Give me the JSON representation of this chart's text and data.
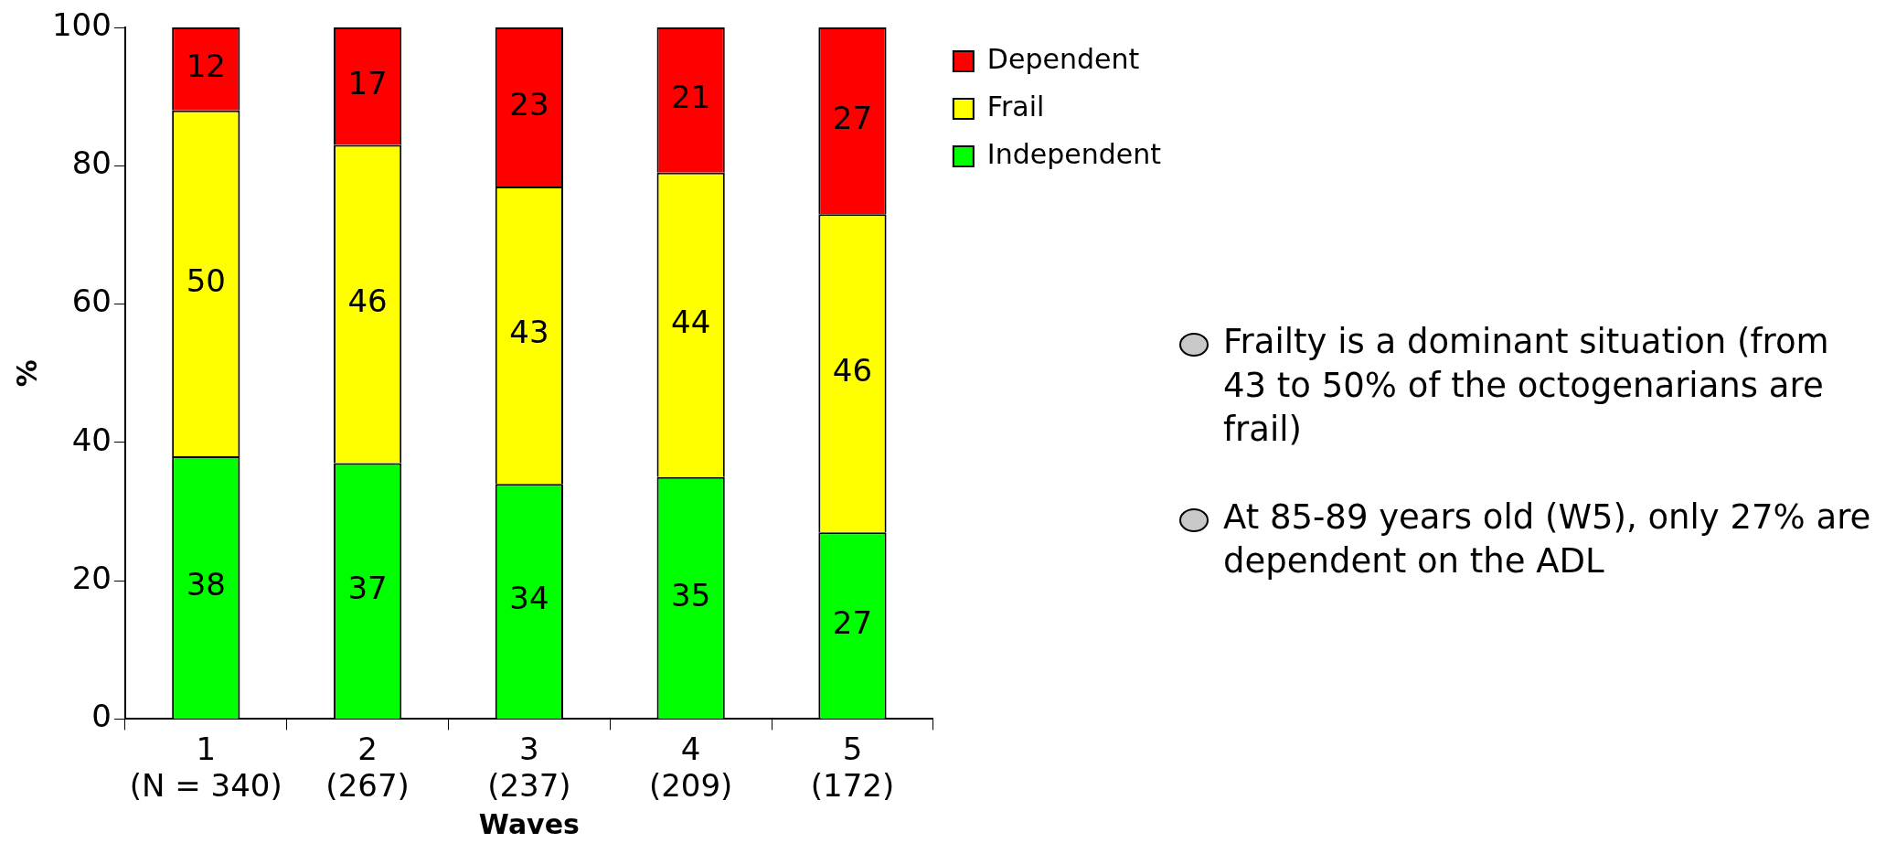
{
  "chart_data": {
    "type": "bar",
    "stacked": true,
    "xlabel": "Waves",
    "ylabel": "%",
    "categories": [
      "1\n(N = 340)",
      "2\n(267)",
      "3\n(237)",
      "4\n(209)",
      "5\n(172)"
    ],
    "series": [
      {
        "name": "Independent",
        "color": "#00ff00",
        "values": [
          38,
          37,
          34,
          35,
          27
        ]
      },
      {
        "name": "Frail",
        "color": "#ffff00",
        "values": [
          50,
          46,
          43,
          44,
          46
        ]
      },
      {
        "name": "Dependent",
        "color": "#ff0000",
        "values": [
          12,
          17,
          23,
          21,
          27
        ]
      }
    ],
    "ylim": [
      0,
      100
    ],
    "yticks": [
      0,
      20,
      40,
      60,
      80,
      100
    ],
    "grid": false,
    "legend": "top right",
    "data_labels": true,
    "annotations": [
      "Frailty is a dominant situation (from 43 to 50% of the octogenarians are frail)",
      "At 85-89 years old (W5), only 27% are dependent on the ADL"
    ]
  }
}
